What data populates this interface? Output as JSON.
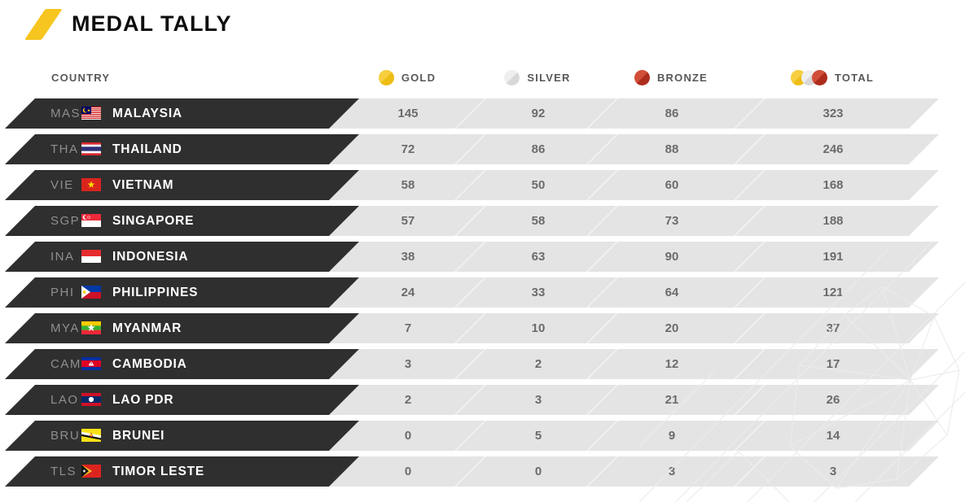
{
  "title": "MEDAL TALLY",
  "header": {
    "country": "COUNTRY",
    "gold": "GOLD",
    "silver": "SILVER",
    "bronze": "BRONZE",
    "total": "TOTAL"
  },
  "colors": {
    "accent": "#F6C51F",
    "row_dark": "#2F2F2F",
    "row_light": "#E4E4E4",
    "header_text": "#58585A",
    "code_text": "#8F8F8F",
    "number_text": "#6B6B6B",
    "gold_light": "#F6CE3E",
    "gold_dark": "#EDBD13",
    "silver_light": "#EFEFEF",
    "silver_dark": "#D8D8D8",
    "bronze_light": "#D14F38",
    "bronze_dark": "#AD2D1D"
  },
  "rows": [
    {
      "code": "MAS",
      "name": "MALAYSIA",
      "flag": "malaysia",
      "gold": "145",
      "silver": "92",
      "bronze": "86",
      "total": "323"
    },
    {
      "code": "THA",
      "name": "THAILAND",
      "flag": "thailand",
      "gold": "72",
      "silver": "86",
      "bronze": "88",
      "total": "246"
    },
    {
      "code": "VIE",
      "name": "VIETNAM",
      "flag": "vietnam",
      "gold": "58",
      "silver": "50",
      "bronze": "60",
      "total": "168"
    },
    {
      "code": "SGP",
      "name": "SINGAPORE",
      "flag": "singapore",
      "gold": "57",
      "silver": "58",
      "bronze": "73",
      "total": "188"
    },
    {
      "code": "INA",
      "name": "INDONESIA",
      "flag": "indonesia",
      "gold": "38",
      "silver": "63",
      "bronze": "90",
      "total": "191"
    },
    {
      "code": "PHI",
      "name": "PHILIPPINES",
      "flag": "philippines",
      "gold": "24",
      "silver": "33",
      "bronze": "64",
      "total": "121"
    },
    {
      "code": "MYA",
      "name": "MYANMAR",
      "flag": "myanmar",
      "gold": "7",
      "silver": "10",
      "bronze": "20",
      "total": "37"
    },
    {
      "code": "CAM",
      "name": "CAMBODIA",
      "flag": "cambodia",
      "gold": "3",
      "silver": "2",
      "bronze": "12",
      "total": "17"
    },
    {
      "code": "LAO",
      "name": "LAO PDR",
      "flag": "laos",
      "gold": "2",
      "silver": "3",
      "bronze": "21",
      "total": "26"
    },
    {
      "code": "BRU",
      "name": "BRUNEI",
      "flag": "brunei",
      "gold": "0",
      "silver": "5",
      "bronze": "9",
      "total": "14"
    },
    {
      "code": "TLS",
      "name": "TIMOR LESTE",
      "flag": "timor-leste",
      "gold": "0",
      "silver": "0",
      "bronze": "3",
      "total": "3"
    }
  ],
  "chart_data": {
    "type": "table",
    "title": "MEDAL TALLY",
    "columns": [
      "COUNTRY",
      "GOLD",
      "SILVER",
      "BRONZE",
      "TOTAL"
    ],
    "rows": [
      [
        "MALAYSIA",
        145,
        92,
        86,
        323
      ],
      [
        "THAILAND",
        72,
        86,
        88,
        246
      ],
      [
        "VIETNAM",
        58,
        50,
        60,
        168
      ],
      [
        "SINGAPORE",
        57,
        58,
        73,
        188
      ],
      [
        "INDONESIA",
        38,
        63,
        90,
        191
      ],
      [
        "PHILIPPINES",
        24,
        33,
        64,
        121
      ],
      [
        "MYANMAR",
        7,
        10,
        20,
        37
      ],
      [
        "CAMBODIA",
        3,
        2,
        12,
        17
      ],
      [
        "LAO PDR",
        2,
        3,
        21,
        26
      ],
      [
        "BRUNEI",
        0,
        5,
        9,
        14
      ],
      [
        "TIMOR LESTE",
        0,
        0,
        3,
        3
      ]
    ]
  }
}
